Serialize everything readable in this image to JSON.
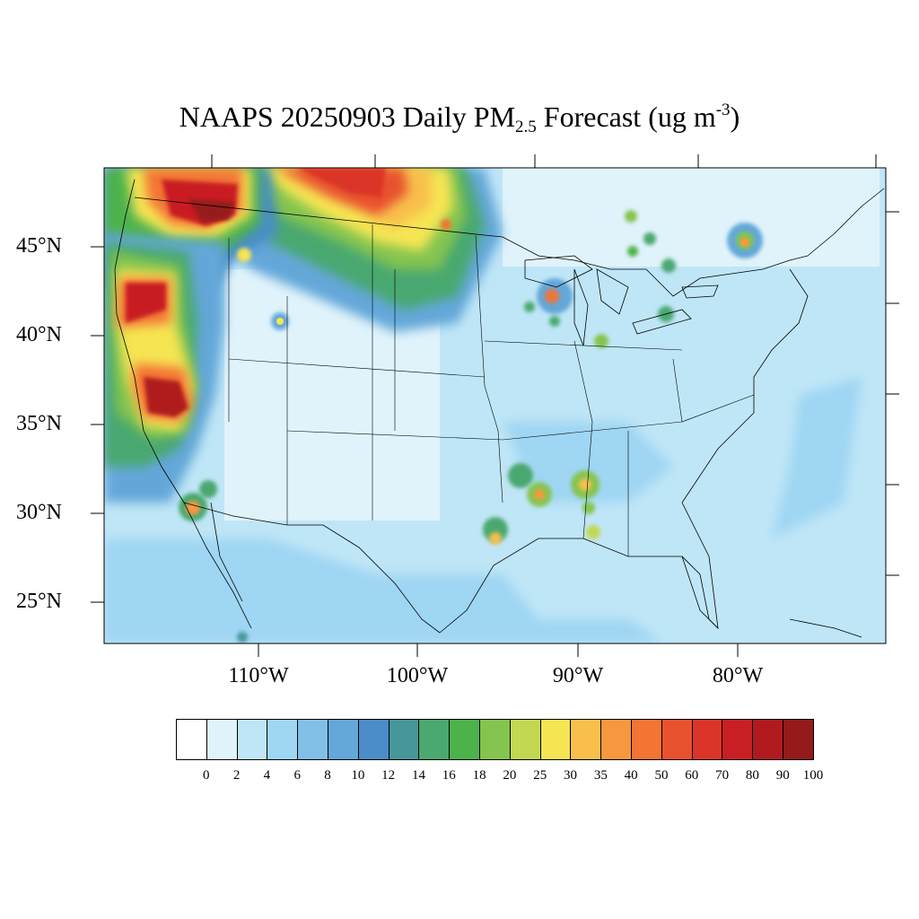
{
  "title": {
    "main": "NAAPS 20250903 Daily PM",
    "subscript": "2.5",
    "rest": " Forecast (ug m",
    "superscript": "-3",
    "close": ")"
  },
  "axes": {
    "lat_labels": [
      "45°N",
      "40°N",
      "35°N",
      "30°N",
      "25°N"
    ],
    "lon_labels": [
      "110°W",
      "100°W",
      "90°W",
      "80°W"
    ]
  },
  "legend": {
    "labels": [
      "0",
      "2",
      "4",
      "6",
      "8",
      "10",
      "12",
      "14",
      "16",
      "18",
      "20",
      "25",
      "30",
      "35",
      "40",
      "50",
      "60",
      "70",
      "80",
      "90",
      "100"
    ],
    "colors": [
      "#ffffff",
      "#e0f3fb",
      "#bfe6f7",
      "#9fd6f3",
      "#82bfe6",
      "#64a7d9",
      "#4a8dc8",
      "#47979a",
      "#4aa870",
      "#4db24b",
      "#85c54f",
      "#c2d852",
      "#f6e553",
      "#f8bf4b",
      "#f7983f",
      "#f37434",
      "#e8512e",
      "#da3528",
      "#c81f24",
      "#b01a1f",
      "#951a1c"
    ]
  },
  "map_features": {
    "plume_regions": [
      "pacific-northwest",
      "northern-plains",
      "california",
      "mexico-sonora",
      "louisiana-mississippi",
      "great-lakes",
      "quebec"
    ]
  }
}
